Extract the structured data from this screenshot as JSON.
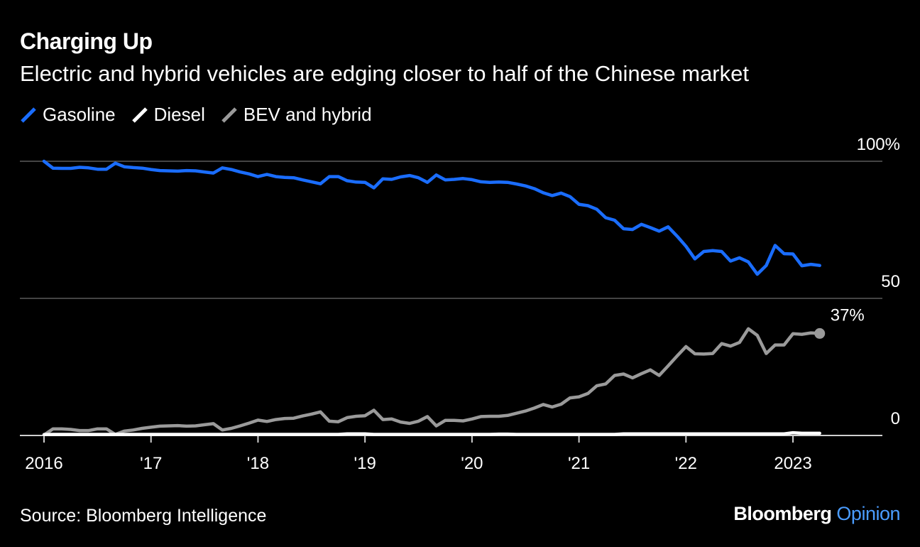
{
  "header": {
    "title": "Charging Up",
    "subtitle": "Electric and hybrid vehicles are edging closer to half of the Chinese market"
  },
  "legend": [
    {
      "label": "Gasoline",
      "color": "#1a6dff"
    },
    {
      "label": "Diesel",
      "color": "#ffffff"
    },
    {
      "label": "BEV and hybrid",
      "color": "#9a9a9a"
    }
  ],
  "footer": {
    "source": "Source: Bloomberg Intelligence",
    "brand_main": "Bloomberg",
    "brand_sub": "Opinion"
  },
  "chart_data": {
    "type": "line",
    "y_unit": "%",
    "ylim": [
      0,
      100
    ],
    "y_ticks": [
      {
        "value": 100,
        "label": "100%"
      },
      {
        "value": 50,
        "label": "50"
      },
      {
        "value": 0,
        "label": "0"
      }
    ],
    "x_ticks": [
      {
        "date": "2016-01",
        "label": "2016"
      },
      {
        "date": "2017-01",
        "label": "'17"
      },
      {
        "date": "2018-01",
        "label": "'18"
      },
      {
        "date": "2019-01",
        "label": "'19"
      },
      {
        "date": "2020-01",
        "label": "'20"
      },
      {
        "date": "2021-01",
        "label": "'21"
      },
      {
        "date": "2022-01",
        "label": "'22"
      },
      {
        "date": "2023-01",
        "label": "2023"
      }
    ],
    "x_start": "2016-01",
    "x_end": "2023-07",
    "grid": true,
    "end_label": {
      "series": "BEV and hybrid",
      "text": "37%"
    },
    "series": [
      {
        "name": "Gasoline",
        "color": "#1a6dff",
        "values": [
          100,
          97.5,
          97.4,
          97.4,
          97.8,
          97.6,
          97.1,
          97.1,
          99.3,
          98.0,
          97.7,
          97.5,
          97.0,
          96.6,
          96.5,
          96.4,
          96.6,
          96.5,
          96.1,
          95.7,
          97.6,
          97.0,
          96.1,
          95.4,
          94.4,
          95.2,
          94.4,
          94.1,
          94.0,
          93.2,
          92.5,
          91.8,
          94.4,
          94.4,
          92.9,
          92.4,
          92.3,
          90.3,
          93.6,
          93.4,
          94.3,
          94.8,
          94.0,
          92.3,
          95.0,
          93.2,
          93.4,
          93.7,
          93.3,
          92.5,
          92.3,
          92.4,
          92.3,
          91.7,
          91.0,
          90.0,
          88.5,
          87.5,
          88.4,
          87.1,
          84.3,
          83.8,
          82.5,
          79.4,
          78.5,
          75.4,
          75.1,
          77.0,
          75.8,
          74.5,
          76.1,
          72.7,
          69.0,
          64.4,
          67.1,
          67.4,
          67.1,
          63.6,
          64.8,
          63.3,
          58.8,
          62.0,
          69.3,
          66.3,
          66.2,
          61.9,
          62.4,
          62.0
        ]
      },
      {
        "name": "Diesel",
        "color": "#ffffff",
        "values": [
          0.3,
          0.4,
          0.4,
          0.4,
          0.4,
          0.4,
          0.4,
          0.4,
          0.4,
          0.4,
          0.4,
          0.4,
          0.4,
          0.4,
          0.4,
          0.4,
          0.4,
          0.4,
          0.4,
          0.4,
          0.4,
          0.4,
          0.4,
          0.4,
          0.4,
          0.4,
          0.4,
          0.4,
          0.4,
          0.4,
          0.4,
          0.4,
          0.4,
          0.4,
          0.6,
          0.6,
          0.6,
          0.4,
          0.4,
          0.4,
          0.4,
          0.4,
          0.4,
          0.4,
          0.4,
          0.4,
          0.4,
          0.4,
          0.4,
          0.4,
          0.4,
          0.5,
          0.5,
          0.4,
          0.4,
          0.4,
          0.4,
          0.4,
          0.4,
          0.4,
          0.4,
          0.4,
          0.4,
          0.4,
          0.4,
          0.6,
          0.6,
          0.6,
          0.6,
          0.6,
          0.6,
          0.6,
          0.6,
          0.6,
          0.6,
          0.6,
          0.6,
          0.6,
          0.6,
          0.6,
          0.6,
          0.6,
          0.6,
          0.6,
          1.0,
          0.8,
          0.8,
          0.8
        ]
      },
      {
        "name": "BEV and hybrid",
        "color": "#9a9a9a",
        "values": [
          0.2,
          2.4,
          2.4,
          2.2,
          1.8,
          1.8,
          2.4,
          2.4,
          0.4,
          1.6,
          2.0,
          2.6,
          3.0,
          3.4,
          3.5,
          3.6,
          3.4,
          3.5,
          3.9,
          4.3,
          2.0,
          2.6,
          3.5,
          4.5,
          5.6,
          5.1,
          5.8,
          6.2,
          6.3,
          7.1,
          7.8,
          8.6,
          5.2,
          5.0,
          6.5,
          7.0,
          7.2,
          9.2,
          5.8,
          6.0,
          4.9,
          4.4,
          5.2,
          6.9,
          3.5,
          5.5,
          5.5,
          5.3,
          6.0,
          6.9,
          7.0,
          7.0,
          7.3,
          8.1,
          8.9,
          10.0,
          11.3,
          10.4,
          11.4,
          13.7,
          14.1,
          15.3,
          18.1,
          18.8,
          21.9,
          22.4,
          21.0,
          22.5,
          23.9,
          21.9,
          25.4,
          29.0,
          32.4,
          29.8,
          29.7,
          29.9,
          33.5,
          32.6,
          33.9,
          38.9,
          36.5,
          29.9,
          33.0,
          33.0,
          37.1,
          36.9,
          37.4,
          37.2
        ]
      }
    ]
  }
}
